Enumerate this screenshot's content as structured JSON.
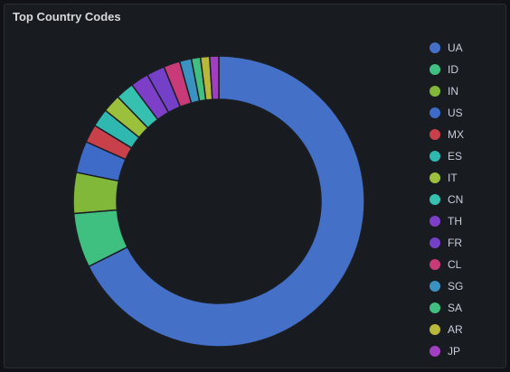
{
  "panel": {
    "title": "Top Country Codes"
  },
  "chart_data": {
    "type": "pie",
    "donut": true,
    "title": "Top Country Codes",
    "legend_position": "right",
    "categories": [
      "UA",
      "ID",
      "IN",
      "US",
      "MX",
      "ES",
      "IT",
      "CN",
      "TH",
      "FR",
      "CL",
      "SG",
      "SA",
      "AR",
      "JP"
    ],
    "values": [
      67.0,
      6.0,
      4.5,
      3.5,
      2.0,
      2.0,
      2.0,
      2.0,
      2.0,
      2.0,
      1.8,
      1.3,
      1.0,
      1.0,
      1.0
    ],
    "colors": [
      "#4470c8",
      "#3fbf80",
      "#82b83a",
      "#3e6ac8",
      "#c8414a",
      "#2fb8b0",
      "#9ac03c",
      "#36c0b0",
      "#7d3fc8",
      "#7440c8",
      "#c83a78",
      "#3a92c0",
      "#40bf80",
      "#b8b83a",
      "#a040c0"
    ],
    "stroke_color": "#1b1e24"
  }
}
